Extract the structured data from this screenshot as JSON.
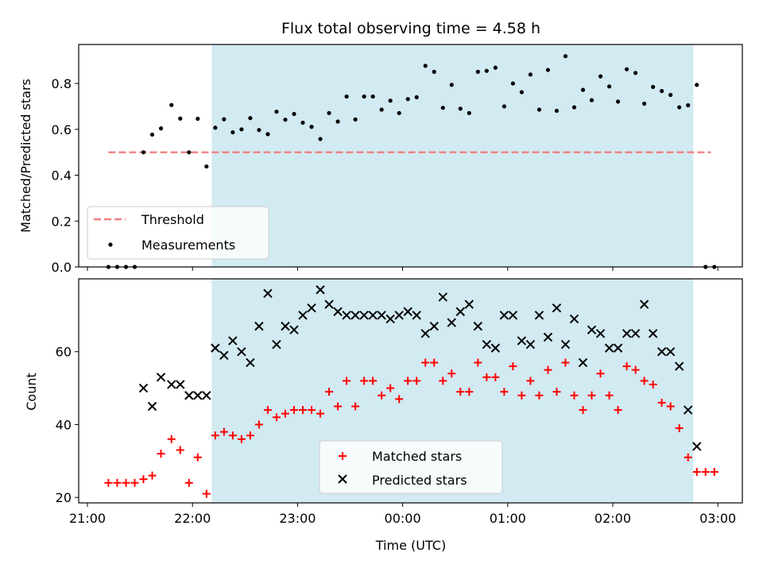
{
  "chart_data": [
    {
      "type": "scatter",
      "title": "Flux total observing time = 4.58 h",
      "xlabel": "",
      "ylabel": "Matched/Predicted stars",
      "ylim": [
        0,
        0.97
      ],
      "xlim": [
        "20:55",
        "03:14"
      ],
      "yticks": [
        "0.0",
        "0.2",
        "0.4",
        "0.6",
        "0.8"
      ],
      "shaded_region": {
        "start": "22:11",
        "end": "02:46",
        "color": "#add8e6"
      },
      "threshold": {
        "name": "Threshold",
        "value": 0.5,
        "start": "21:12",
        "end": "02:56",
        "color": "#f08080"
      },
      "legend": {
        "placement": "lower-left",
        "entries": [
          "Threshold",
          "Measurements"
        ]
      },
      "series": [
        {
          "name": "Measurements",
          "marker": "dot",
          "color": "#000000",
          "points": [
            [
              "21:12",
              0.0
            ],
            [
              "21:17",
              0.0
            ],
            [
              "21:22",
              0.0
            ],
            [
              "21:27",
              0.0
            ],
            [
              "21:32",
              0.5
            ],
            [
              "21:37",
              0.577
            ],
            [
              "21:42",
              0.604
            ],
            [
              "21:48",
              0.706
            ],
            [
              "21:53",
              0.647
            ],
            [
              "21:58",
              0.5
            ],
            [
              "22:03",
              0.646
            ],
            [
              "22:08",
              0.438
            ],
            [
              "22:13",
              0.607
            ],
            [
              "22:18",
              0.644
            ],
            [
              "22:23",
              0.587
            ],
            [
              "22:28",
              0.6
            ],
            [
              "22:33",
              0.649
            ],
            [
              "22:38",
              0.597
            ],
            [
              "22:43",
              0.579
            ],
            [
              "22:48",
              0.677
            ],
            [
              "22:53",
              0.642
            ],
            [
              "22:58",
              0.667
            ],
            [
              "23:03",
              0.629
            ],
            [
              "23:08",
              0.611
            ],
            [
              "23:13",
              0.558
            ],
            [
              "23:18",
              0.671
            ],
            [
              "23:23",
              0.634
            ],
            [
              "23:28",
              0.743
            ],
            [
              "23:33",
              0.643
            ],
            [
              "23:38",
              0.743
            ],
            [
              "23:43",
              0.743
            ],
            [
              "23:48",
              0.686
            ],
            [
              "23:53",
              0.725
            ],
            [
              "23:58",
              0.671
            ],
            [
              "00:03",
              0.732
            ],
            [
              "00:08",
              0.74
            ],
            [
              "00:13",
              0.877
            ],
            [
              "00:18",
              0.851
            ],
            [
              "00:23",
              0.694
            ],
            [
              "00:28",
              0.794
            ],
            [
              "00:33",
              0.69
            ],
            [
              "00:38",
              0.671
            ],
            [
              "00:43",
              0.851
            ],
            [
              "00:48",
              0.855
            ],
            [
              "00:53",
              0.869
            ],
            [
              "00:58",
              0.7
            ],
            [
              "01:03",
              0.8
            ],
            [
              "01:08",
              0.762
            ],
            [
              "01:13",
              0.839
            ],
            [
              "01:18",
              0.686
            ],
            [
              "01:23",
              0.859
            ],
            [
              "01:28",
              0.681
            ],
            [
              "01:33",
              0.919
            ],
            [
              "01:38",
              0.696
            ],
            [
              "01:43",
              0.772
            ],
            [
              "01:48",
              0.727
            ],
            [
              "01:53",
              0.831
            ],
            [
              "01:58",
              0.787
            ],
            [
              "02:03",
              0.721
            ],
            [
              "02:08",
              0.862
            ],
            [
              "02:13",
              0.846
            ],
            [
              "02:18",
              0.712
            ],
            [
              "02:23",
              0.785
            ],
            [
              "02:28",
              0.767
            ],
            [
              "02:33",
              0.75
            ],
            [
              "02:38",
              0.696
            ],
            [
              "02:43",
              0.705
            ],
            [
              "02:48",
              0.794
            ],
            [
              "02:53",
              0.0
            ],
            [
              "02:58",
              0.0
            ]
          ]
        }
      ]
    },
    {
      "type": "scatter",
      "title": "",
      "xlabel": "Time (UTC)",
      "ylabel": "Count",
      "ylim": [
        18.5,
        80
      ],
      "xlim": [
        "20:55",
        "03:14"
      ],
      "yticks": [
        "20",
        "40",
        "60"
      ],
      "xticks": [
        "21:00",
        "22:00",
        "23:00",
        "00:00",
        "01:00",
        "02:00",
        "03:00"
      ],
      "shaded_region": {
        "start": "22:11",
        "end": "02:46",
        "color": "#add8e6"
      },
      "legend": {
        "placement": "lower-center",
        "entries": [
          "Matched stars",
          "Predicted stars"
        ]
      },
      "series": [
        {
          "name": "Matched stars",
          "marker": "plus",
          "color": "#ff0000",
          "points": [
            [
              "21:12",
              24
            ],
            [
              "21:17",
              24
            ],
            [
              "21:22",
              24
            ],
            [
              "21:27",
              24
            ],
            [
              "21:32",
              25
            ],
            [
              "21:37",
              26
            ],
            [
              "21:42",
              32
            ],
            [
              "21:48",
              36
            ],
            [
              "21:53",
              33
            ],
            [
              "21:58",
              24
            ],
            [
              "22:03",
              31
            ],
            [
              "22:08",
              21
            ],
            [
              "22:13",
              37
            ],
            [
              "22:18",
              38
            ],
            [
              "22:23",
              37
            ],
            [
              "22:28",
              36
            ],
            [
              "22:33",
              37
            ],
            [
              "22:38",
              40
            ],
            [
              "22:43",
              44
            ],
            [
              "22:48",
              42
            ],
            [
              "22:53",
              43
            ],
            [
              "22:58",
              44
            ],
            [
              "23:03",
              44
            ],
            [
              "23:08",
              44
            ],
            [
              "23:13",
              43
            ],
            [
              "23:18",
              49
            ],
            [
              "23:23",
              45
            ],
            [
              "23:28",
              52
            ],
            [
              "23:33",
              45
            ],
            [
              "23:38",
              52
            ],
            [
              "23:43",
              52
            ],
            [
              "23:48",
              48
            ],
            [
              "23:53",
              50
            ],
            [
              "23:58",
              47
            ],
            [
              "00:03",
              52
            ],
            [
              "00:08",
              52
            ],
            [
              "00:13",
              57
            ],
            [
              "00:18",
              57
            ],
            [
              "00:23",
              52
            ],
            [
              "00:28",
              54
            ],
            [
              "00:33",
              49
            ],
            [
              "00:38",
              49
            ],
            [
              "00:43",
              57
            ],
            [
              "00:48",
              53
            ],
            [
              "00:53",
              53
            ],
            [
              "00:58",
              49
            ],
            [
              "01:03",
              56
            ],
            [
              "01:08",
              48
            ],
            [
              "01:13",
              52
            ],
            [
              "01:18",
              48
            ],
            [
              "01:23",
              55
            ],
            [
              "01:28",
              49
            ],
            [
              "01:33",
              57
            ],
            [
              "01:38",
              48
            ],
            [
              "01:43",
              44
            ],
            [
              "01:48",
              48
            ],
            [
              "01:53",
              54
            ],
            [
              "01:58",
              48
            ],
            [
              "02:03",
              44
            ],
            [
              "02:08",
              56
            ],
            [
              "02:13",
              55
            ],
            [
              "02:18",
              52
            ],
            [
              "02:23",
              51
            ],
            [
              "02:28",
              46
            ],
            [
              "02:33",
              45
            ],
            [
              "02:38",
              39
            ],
            [
              "02:43",
              31
            ],
            [
              "02:48",
              27
            ],
            [
              "02:53",
              27
            ],
            [
              "02:58",
              27
            ]
          ]
        },
        {
          "name": "Predicted stars",
          "marker": "x",
          "color": "#000000",
          "points": [
            [
              "21:32",
              50
            ],
            [
              "21:37",
              45
            ],
            [
              "21:42",
              53
            ],
            [
              "21:48",
              51
            ],
            [
              "21:53",
              51
            ],
            [
              "21:58",
              48
            ],
            [
              "22:03",
              48
            ],
            [
              "22:08",
              48
            ],
            [
              "22:13",
              61
            ],
            [
              "22:18",
              59
            ],
            [
              "22:23",
              63
            ],
            [
              "22:28",
              60
            ],
            [
              "22:33",
              57
            ],
            [
              "22:38",
              67
            ],
            [
              "22:43",
              76
            ],
            [
              "22:48",
              62
            ],
            [
              "22:53",
              67
            ],
            [
              "22:58",
              66
            ],
            [
              "23:03",
              70
            ],
            [
              "23:08",
              72
            ],
            [
              "23:13",
              77
            ],
            [
              "23:18",
              73
            ],
            [
              "23:23",
              71
            ],
            [
              "23:28",
              70
            ],
            [
              "23:33",
              70
            ],
            [
              "23:38",
              70
            ],
            [
              "23:43",
              70
            ],
            [
              "23:48",
              70
            ],
            [
              "23:53",
              69
            ],
            [
              "23:58",
              70
            ],
            [
              "00:03",
              71
            ],
            [
              "00:08",
              70
            ],
            [
              "00:13",
              65
            ],
            [
              "00:18",
              67
            ],
            [
              "00:23",
              75
            ],
            [
              "00:28",
              68
            ],
            [
              "00:33",
              71
            ],
            [
              "00:38",
              73
            ],
            [
              "00:43",
              67
            ],
            [
              "00:48",
              62
            ],
            [
              "00:53",
              61
            ],
            [
              "00:58",
              70
            ],
            [
              "01:03",
              70
            ],
            [
              "01:08",
              63
            ],
            [
              "01:13",
              62
            ],
            [
              "01:18",
              70
            ],
            [
              "01:23",
              64
            ],
            [
              "01:28",
              72
            ],
            [
              "01:33",
              62
            ],
            [
              "01:38",
              69
            ],
            [
              "01:43",
              57
            ],
            [
              "01:48",
              66
            ],
            [
              "01:53",
              65
            ],
            [
              "01:58",
              61
            ],
            [
              "02:03",
              61
            ],
            [
              "02:08",
              65
            ],
            [
              "02:13",
              65
            ],
            [
              "02:18",
              73
            ],
            [
              "02:23",
              65
            ],
            [
              "02:28",
              60
            ],
            [
              "02:33",
              60
            ],
            [
              "02:38",
              56
            ],
            [
              "02:43",
              44
            ],
            [
              "02:48",
              34
            ]
          ]
        }
      ]
    }
  ]
}
